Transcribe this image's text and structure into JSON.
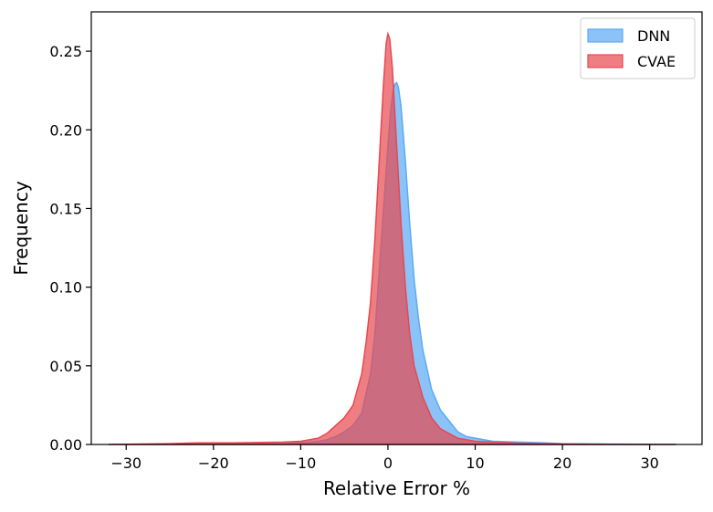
{
  "chart_data": {
    "type": "area",
    "xlabel": "Relative Error %",
    "ylabel": "Frequency",
    "xlim": [
      -34,
      36
    ],
    "ylim": [
      0,
      0.275
    ],
    "xticks": [
      -30,
      -20,
      -10,
      0,
      10,
      20,
      30
    ],
    "xtick_labels": [
      "−30",
      "−20",
      "−10",
      "0",
      "10",
      "20",
      "30"
    ],
    "yticks": [
      0.0,
      0.05,
      0.1,
      0.15,
      0.2,
      0.25
    ],
    "ytick_labels": [
      "0.00",
      "0.05",
      "0.10",
      "0.15",
      "0.20",
      "0.25"
    ],
    "grid": false,
    "legend": "top-right",
    "series": [
      {
        "name": "DNN",
        "color": "#5aaaf5",
        "x": [
          -32,
          -20,
          -12,
          -10,
          -8,
          -7,
          -6,
          -5,
          -4,
          -3,
          -2,
          -1.5,
          -1,
          -0.5,
          0,
          0.3,
          0.6,
          0.8,
          1,
          1.2,
          1.5,
          2,
          2.5,
          3,
          3.5,
          4,
          5,
          6,
          7,
          8,
          9,
          10,
          12,
          15,
          18,
          20,
          25,
          33
        ],
        "y": [
          0,
          0,
          0.0005,
          0.001,
          0.002,
          0.003,
          0.005,
          0.008,
          0.012,
          0.02,
          0.045,
          0.07,
          0.11,
          0.15,
          0.19,
          0.212,
          0.225,
          0.229,
          0.23,
          0.227,
          0.215,
          0.18,
          0.14,
          0.105,
          0.08,
          0.06,
          0.035,
          0.022,
          0.015,
          0.008,
          0.005,
          0.004,
          0.002,
          0.0015,
          0.001,
          0.0005,
          0.0003,
          0
        ]
      },
      {
        "name": "CVAE",
        "color": "#e8474f",
        "x": [
          -32,
          -25,
          -22,
          -18,
          -12,
          -10,
          -9,
          -8,
          -7,
          -6,
          -5,
          -4,
          -3,
          -2.5,
          -2,
          -1.5,
          -1,
          -0.5,
          -0.2,
          0,
          0.2,
          0.5,
          1,
          1.5,
          2,
          2.5,
          3,
          4,
          5,
          6,
          8,
          10,
          15,
          20,
          25,
          33
        ],
        "y": [
          0,
          0.0005,
          0.001,
          0.001,
          0.0015,
          0.002,
          0.003,
          0.004,
          0.007,
          0.012,
          0.017,
          0.025,
          0.045,
          0.065,
          0.09,
          0.13,
          0.18,
          0.23,
          0.255,
          0.261,
          0.258,
          0.24,
          0.19,
          0.14,
          0.1,
          0.07,
          0.05,
          0.03,
          0.017,
          0.01,
          0.004,
          0.002,
          0.0008,
          0.0003,
          0.0001,
          0
        ]
      }
    ]
  }
}
